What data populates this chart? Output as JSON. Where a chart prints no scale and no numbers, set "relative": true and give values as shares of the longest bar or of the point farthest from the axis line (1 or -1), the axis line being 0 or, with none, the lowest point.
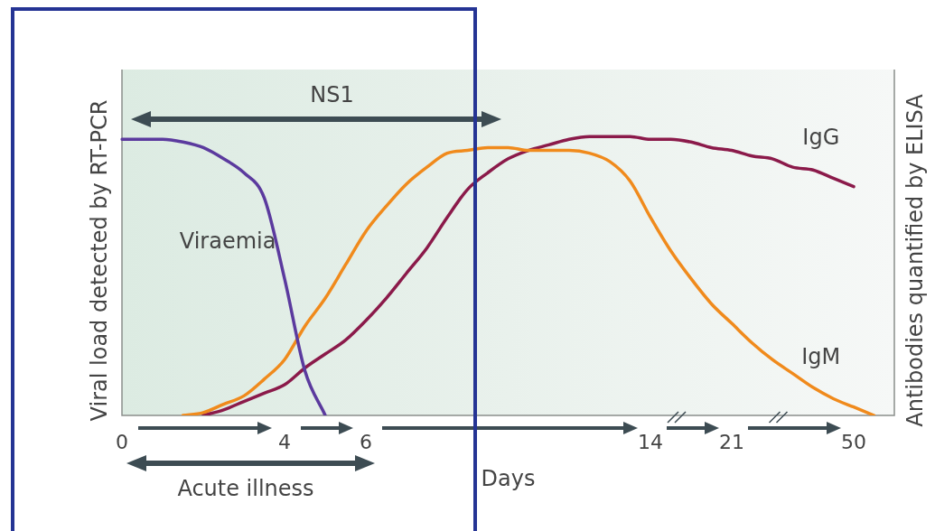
{
  "chart_data": {
    "type": "line",
    "relative": true,
    "xlabel": "Days",
    "ylabel": "Viral load detected by RT-PCR",
    "y2label": "Antibodies quantified by ELISA",
    "categories": [
      "0",
      null,
      null,
      null,
      null,
      null,
      null,
      null,
      "4",
      null,
      null,
      null,
      "6",
      null,
      null,
      null,
      null,
      null,
      null,
      null,
      null,
      null,
      null,
      null,
      null,
      null,
      "14",
      null,
      null,
      null,
      "21",
      null,
      null,
      null,
      null,
      null,
      "50",
      null,
      null
    ],
    "series": [
      {
        "name": "Viraemia",
        "color": "#5b3a9e",
        "values": [
          0.99,
          0.99,
          0.99,
          0.98,
          0.96,
          0.92,
          0.87,
          0.78,
          0.49,
          0.16,
          0,
          null,
          null,
          null,
          null,
          null,
          null,
          null,
          null,
          null,
          null,
          null,
          null,
          null,
          null,
          null,
          null,
          null,
          null,
          null,
          null,
          null,
          null,
          null,
          null,
          null,
          null,
          null,
          null
        ]
      },
      {
        "name": "IgM",
        "color": "#f08a1c",
        "values": [
          null,
          null,
          null,
          0,
          0.01,
          0.04,
          0.07,
          0.13,
          0.2,
          0.32,
          0.42,
          0.54,
          0.66,
          0.75,
          0.83,
          0.89,
          0.94,
          0.95,
          0.96,
          0.96,
          0.95,
          0.95,
          0.95,
          0.94,
          0.91,
          0.84,
          0.71,
          0.59,
          0.49,
          0.4,
          0.33,
          0.26,
          0.2,
          0.15,
          0.1,
          0.06,
          0.03,
          0,
          null
        ]
      },
      {
        "name": "IgG",
        "color": "#8b1a4a",
        "values": [
          null,
          null,
          null,
          null,
          0,
          0.02,
          0.05,
          0.08,
          0.11,
          0.17,
          0.22,
          0.27,
          0.34,
          0.42,
          0.51,
          0.6,
          0.71,
          0.81,
          0.87,
          0.92,
          0.95,
          0.97,
          0.99,
          1,
          1,
          1,
          0.99,
          0.99,
          0.98,
          0.96,
          0.95,
          0.93,
          0.92,
          0.89,
          0.88,
          0.85,
          0.82,
          null,
          null
        ]
      }
    ],
    "annotations": [
      "NS1",
      "Acute illness"
    ],
    "grid": false,
    "legend": false,
    "line_style": "solid",
    "marker": "none"
  }
}
